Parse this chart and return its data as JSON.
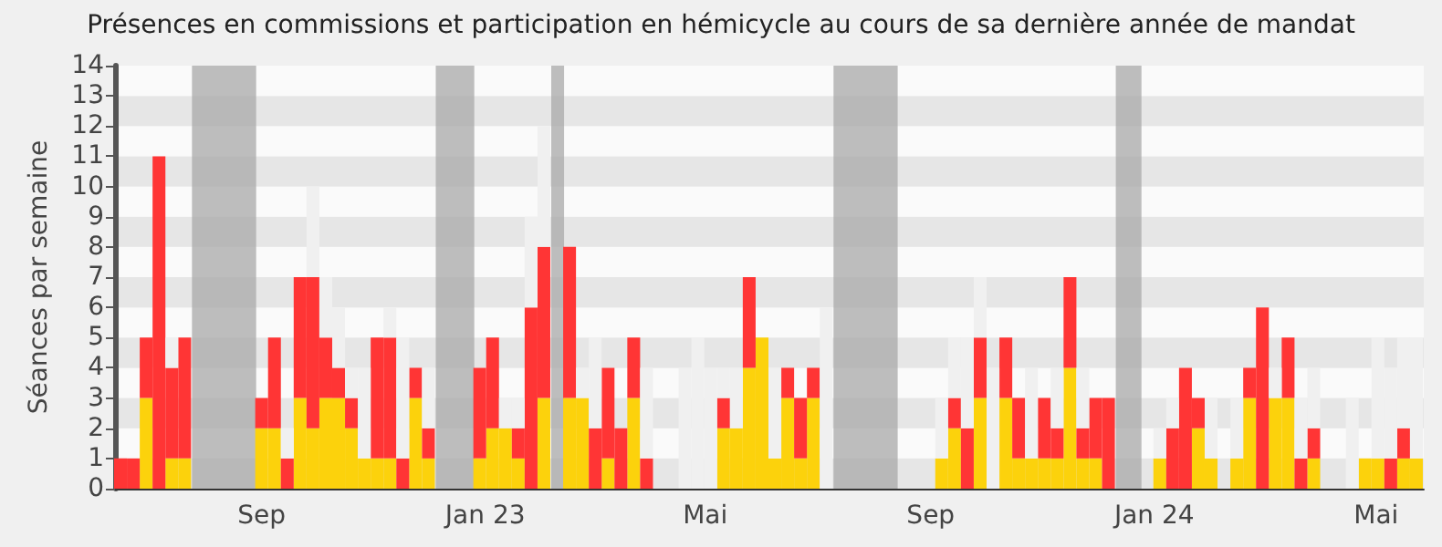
{
  "chart_data": {
    "type": "bar",
    "title": "Présences en commissions et participation en hémicycle au cours de sa dernière année de mandat",
    "ylabel": "Séances par semaine",
    "x": [
      "2022-06-16",
      "2022-06-23",
      "2022-06-30",
      "2022-07-07",
      "2022-07-14",
      "2022-07-21",
      "2022-07-28",
      "2022-08-04",
      "2022-08-11",
      "2022-08-18",
      "2022-08-25",
      "2022-09-01",
      "2022-09-08",
      "2022-09-15",
      "2022-09-22",
      "2022-09-29",
      "2022-10-06",
      "2022-10-13",
      "2022-10-20",
      "2022-10-27",
      "2022-11-03",
      "2022-11-10",
      "2022-11-17",
      "2022-11-24",
      "2022-12-01",
      "2022-12-08",
      "2022-12-15",
      "2022-12-22",
      "2022-12-29",
      "2023-01-05",
      "2023-01-12",
      "2023-01-19",
      "2023-01-26",
      "2023-02-02",
      "2023-02-09",
      "2023-02-16",
      "2023-02-23",
      "2023-03-02",
      "2023-03-09",
      "2023-03-16",
      "2023-03-23",
      "2023-03-30",
      "2023-04-06",
      "2023-04-13",
      "2023-04-20",
      "2023-04-27",
      "2023-05-04",
      "2023-05-11",
      "2023-05-18",
      "2023-05-25",
      "2023-06-01",
      "2023-06-08",
      "2023-06-15",
      "2023-06-22",
      "2023-06-29",
      "2023-07-06",
      "2023-07-13",
      "2023-07-20",
      "2023-07-27",
      "2023-08-03",
      "2023-08-10",
      "2023-08-17",
      "2023-08-24",
      "2023-08-31",
      "2023-09-07",
      "2023-09-14",
      "2023-09-21",
      "2023-09-28",
      "2023-10-05",
      "2023-10-12",
      "2023-10-19",
      "2023-10-26",
      "2023-11-02",
      "2023-11-09",
      "2023-11-16",
      "2023-11-23",
      "2023-11-30",
      "2023-12-07",
      "2023-12-14",
      "2023-12-21",
      "2023-12-28",
      "2024-01-04",
      "2024-01-11",
      "2024-01-18",
      "2024-01-25",
      "2024-02-01",
      "2024-02-08",
      "2024-02-15",
      "2024-02-22",
      "2024-02-29",
      "2024-03-07",
      "2024-03-14",
      "2024-03-21",
      "2024-03-28",
      "2024-04-04",
      "2024-04-11",
      "2024-04-18",
      "2024-04-25",
      "2024-05-02",
      "2024-05-09",
      "2024-05-16",
      "2024-05-23"
    ],
    "xlim": [
      "2022-06-13",
      "2024-05-27"
    ],
    "xticks": [
      {
        "value": "2022-09-01",
        "label": "Sep"
      },
      {
        "value": "2023-01-01",
        "label": "Jan 23"
      },
      {
        "value": "2023-05-01",
        "label": "Mai"
      },
      {
        "value": "2023-09-01",
        "label": "Sep"
      },
      {
        "value": "2024-01-01",
        "label": "Jan 24"
      },
      {
        "value": "2024-05-01",
        "label": "Mai"
      }
    ],
    "stacked": true,
    "ylim": [
      0,
      14
    ],
    "yticks": [
      0,
      1,
      2,
      3,
      4,
      5,
      6,
      7,
      8,
      9,
      10,
      11,
      12,
      13,
      14
    ],
    "bands": [
      {
        "axis": "x",
        "from": "2022-07-25",
        "to": "2022-08-29",
        "color": "#a8a8a8"
      },
      {
        "axis": "x",
        "from": "2022-12-05",
        "to": "2022-12-26",
        "color": "#a8a8a8"
      },
      {
        "axis": "x",
        "from": "2023-02-06",
        "to": "2023-02-13",
        "color": "#a8a8a8"
      },
      {
        "axis": "x",
        "from": "2023-07-10",
        "to": "2023-08-14",
        "color": "#a8a8a8"
      },
      {
        "axis": "x",
        "from": "2023-12-11",
        "to": "2023-12-25",
        "color": "#a8a8a8"
      }
    ],
    "series": [
      {
        "color": "#fcd20c",
        "values": [
          null,
          null,
          3,
          null,
          1,
          1,
          null,
          null,
          null,
          null,
          null,
          2,
          2,
          null,
          3,
          2,
          3,
          3,
          2,
          1,
          1,
          1,
          null,
          3,
          1,
          null,
          null,
          null,
          1,
          2,
          2,
          1,
          null,
          3,
          null,
          3,
          3,
          null,
          1,
          null,
          3,
          null,
          null,
          null,
          null,
          null,
          null,
          2,
          2,
          4,
          5,
          1,
          3,
          1,
          3,
          null,
          null,
          null,
          null,
          null,
          null,
          null,
          null,
          null,
          1,
          2,
          null,
          3,
          null,
          3,
          1,
          1,
          1,
          1,
          4,
          1,
          1,
          null,
          null,
          null,
          null,
          1,
          null,
          null,
          2,
          1,
          null,
          1,
          3,
          null,
          3,
          3,
          null,
          1,
          null,
          null,
          null,
          1,
          1,
          null,
          1,
          1
        ]
      },
      {
        "color": "#ff3535",
        "values": [
          1,
          1,
          2,
          11,
          3,
          4,
          null,
          null,
          null,
          null,
          null,
          1,
          3,
          1,
          4,
          5,
          2,
          1,
          1,
          null,
          4,
          4,
          1,
          1,
          1,
          null,
          null,
          null,
          3,
          3,
          null,
          1,
          6,
          5,
          null,
          5,
          null,
          2,
          3,
          2,
          2,
          1,
          null,
          null,
          null,
          null,
          null,
          1,
          null,
          3,
          null,
          null,
          1,
          2,
          1,
          null,
          null,
          null,
          null,
          null,
          null,
          null,
          null,
          null,
          null,
          1,
          2,
          2,
          null,
          2,
          2,
          null,
          2,
          1,
          3,
          1,
          2,
          3,
          null,
          null,
          null,
          null,
          2,
          4,
          1,
          null,
          null,
          null,
          1,
          6,
          null,
          2,
          1,
          1,
          null,
          null,
          null,
          null,
          null,
          1,
          1,
          null
        ]
      },
      {
        "color": "#f0f0f0",
        "values": [
          null,
          null,
          null,
          null,
          1,
          null,
          null,
          null,
          null,
          null,
          null,
          null,
          null,
          1,
          null,
          3,
          2,
          2,
          1,
          3,
          null,
          1,
          4,
          null,
          2,
          null,
          null,
          null,
          null,
          null,
          1,
          1,
          3,
          4,
          null,
          null,
          1,
          3,
          null,
          null,
          null,
          3,
          null,
          null,
          4,
          5,
          4,
          1,
          2,
          null,
          null,
          3,
          null,
          null,
          null,
          6,
          null,
          null,
          null,
          null,
          null,
          null,
          null,
          null,
          2,
          2,
          3,
          2,
          4,
          null,
          null,
          3,
          null,
          2,
          null,
          2,
          null,
          null,
          null,
          null,
          null,
          1,
          1,
          null,
          null,
          2,
          null,
          2,
          null,
          null,
          1,
          null,
          2,
          2,
          null,
          null,
          3,
          null,
          4,
          3,
          3,
          4
        ]
      }
    ]
  }
}
